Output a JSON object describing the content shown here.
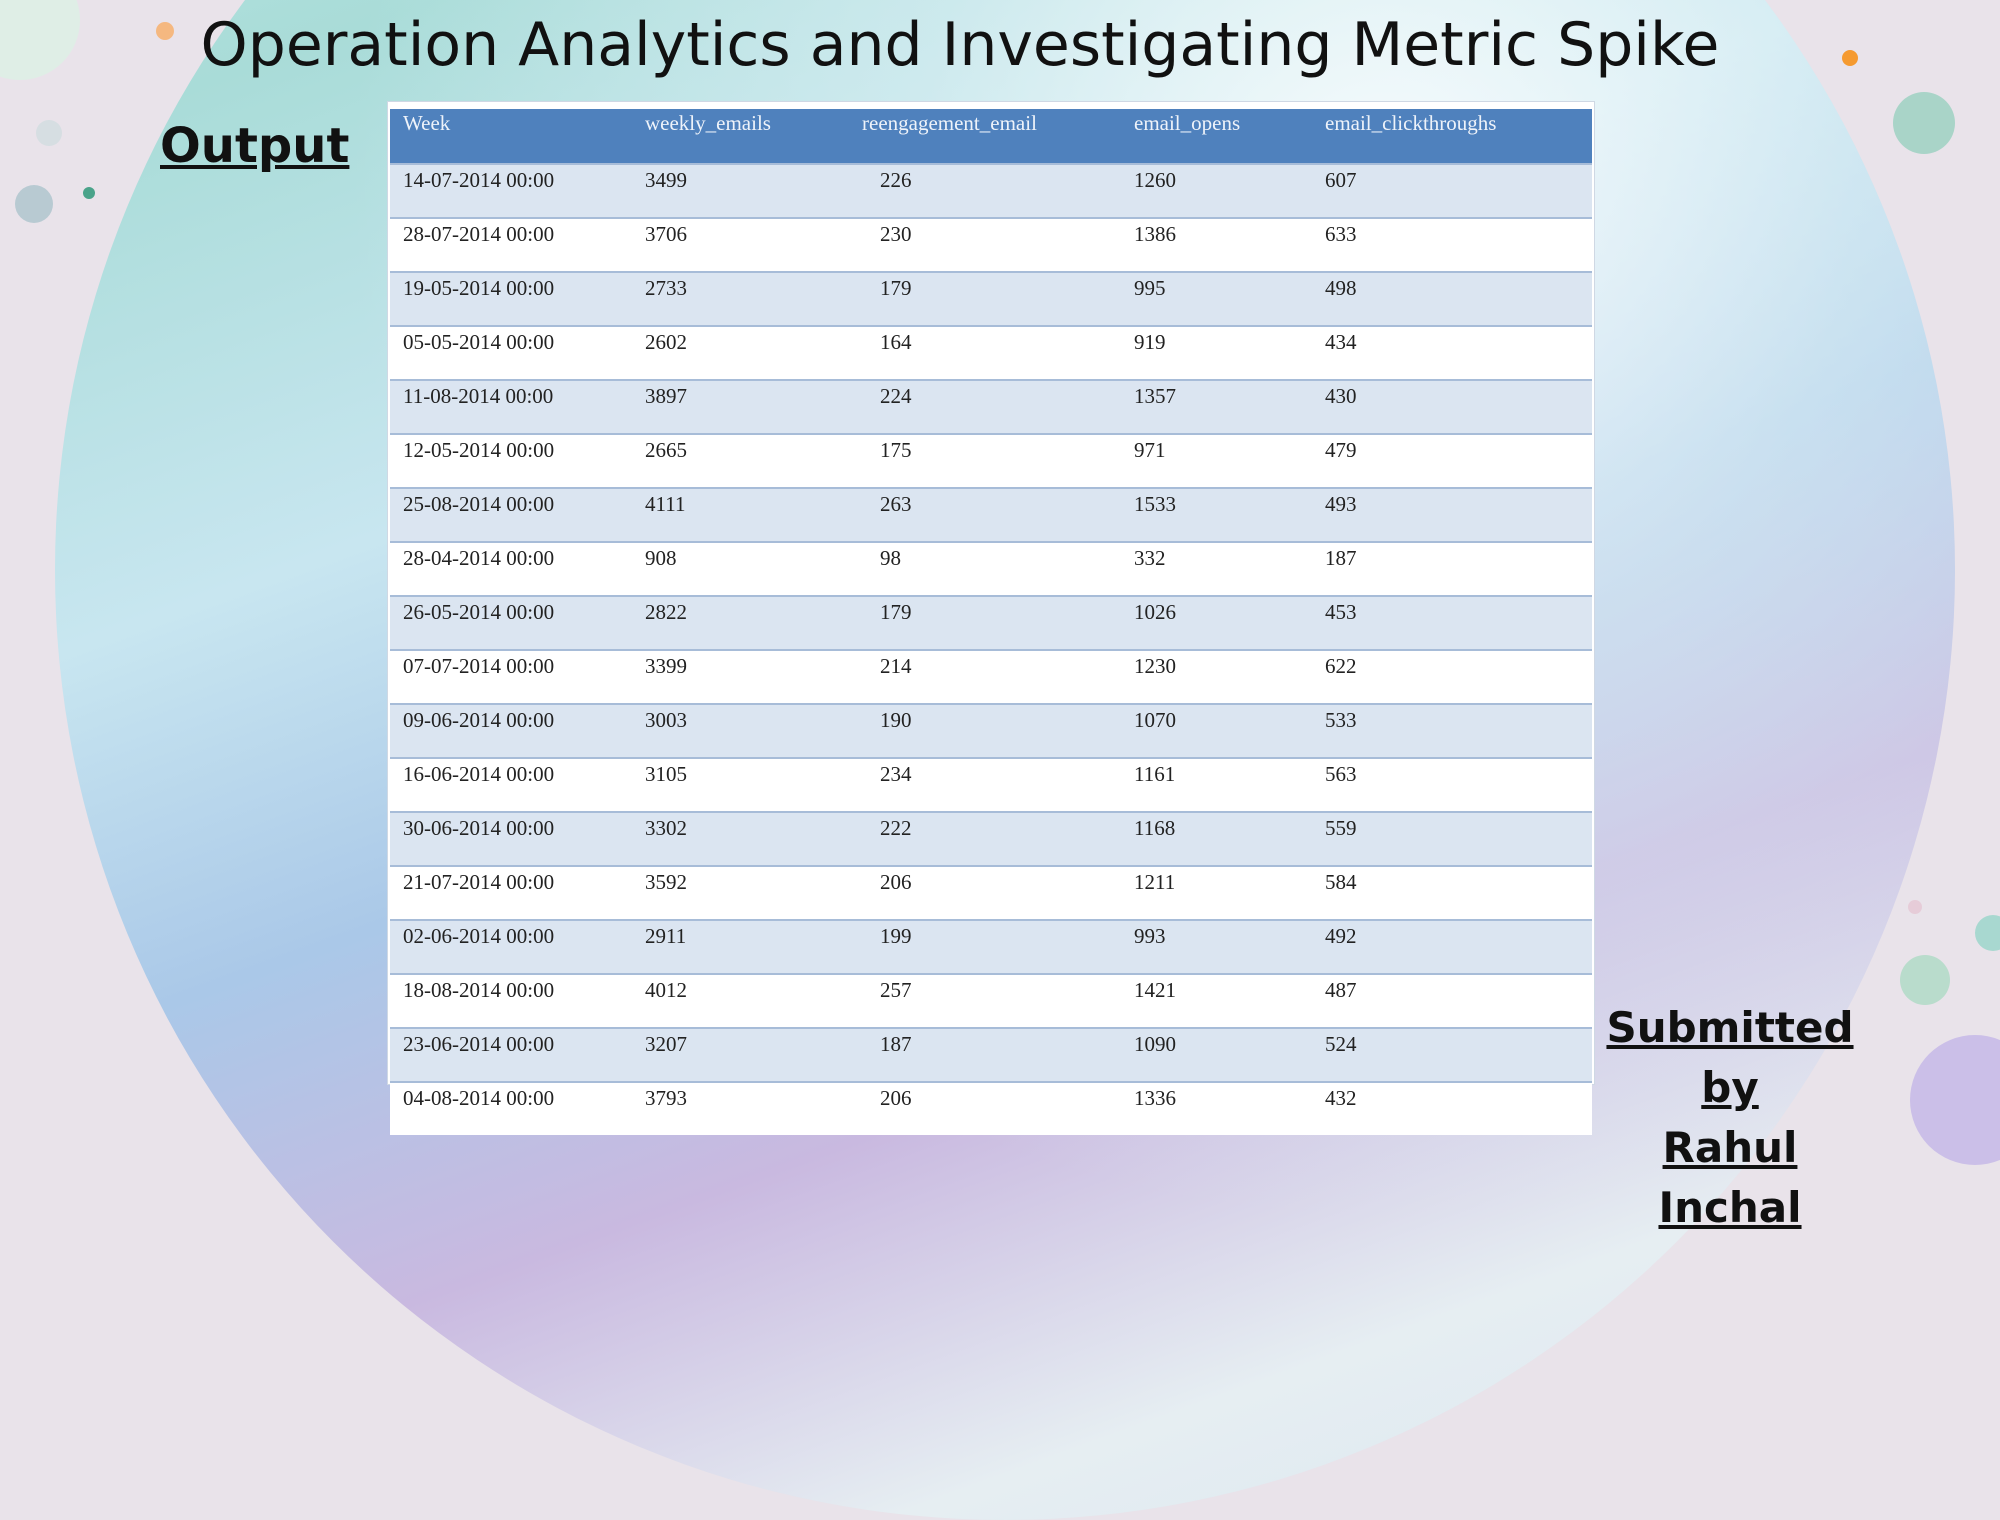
{
  "slide": {
    "title": "Operation Analytics and Investigating Metric Spike",
    "output_label": "Output",
    "submitted_line1": "Submitted by",
    "submitted_line2": "Rahul Inchal"
  },
  "table": {
    "headers": [
      "Week",
      "weekly_emails",
      "reengagement_email",
      "email_opens",
      "email_clickthroughs"
    ],
    "rows": [
      [
        "14-07-2014 00:00",
        "3499",
        "226",
        "1260",
        "607"
      ],
      [
        "28-07-2014 00:00",
        "3706",
        "230",
        "1386",
        "633"
      ],
      [
        "19-05-2014 00:00",
        "2733",
        "179",
        "995",
        "498"
      ],
      [
        "05-05-2014 00:00",
        "2602",
        "164",
        "919",
        "434"
      ],
      [
        "11-08-2014 00:00",
        "3897",
        "224",
        "1357",
        "430"
      ],
      [
        "12-05-2014 00:00",
        "2665",
        "175",
        "971",
        "479"
      ],
      [
        "25-08-2014 00:00",
        "4111",
        "263",
        "1533",
        "493"
      ],
      [
        "28-04-2014 00:00",
        "908",
        "98",
        "332",
        "187"
      ],
      [
        "26-05-2014 00:00",
        "2822",
        "179",
        "1026",
        "453"
      ],
      [
        "07-07-2014 00:00",
        "3399",
        "214",
        "1230",
        "622"
      ],
      [
        "09-06-2014 00:00",
        "3003",
        "190",
        "1070",
        "533"
      ],
      [
        "16-06-2014 00:00",
        "3105",
        "234",
        "1161",
        "563"
      ],
      [
        "30-06-2014 00:00",
        "3302",
        "222",
        "1168",
        "559"
      ],
      [
        "21-07-2014 00:00",
        "3592",
        "206",
        "1211",
        "584"
      ],
      [
        "02-06-2014 00:00",
        "2911",
        "199",
        "993",
        "492"
      ],
      [
        "18-08-2014 00:00",
        "4012",
        "257",
        "1421",
        "487"
      ],
      [
        "23-06-2014 00:00",
        "3207",
        "187",
        "1090",
        "524"
      ],
      [
        "04-08-2014 00:00",
        "3793",
        "206",
        "1336",
        "432"
      ]
    ]
  },
  "colors": {
    "header_bg": "#4f81bd",
    "band_bg": "#dbe5f1",
    "accent_dot": "#f5a040"
  }
}
